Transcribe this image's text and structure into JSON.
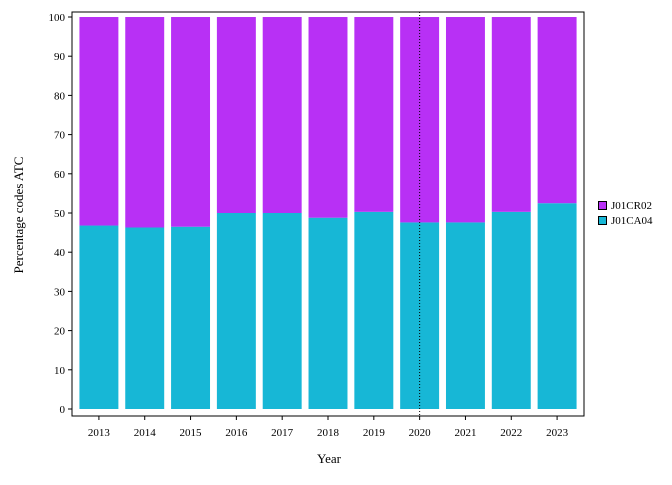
{
  "chart_data": {
    "type": "bar",
    "stacked": true,
    "categories": [
      "2013",
      "2014",
      "2015",
      "2016",
      "2017",
      "2018",
      "2019",
      "2020",
      "2021",
      "2022",
      "2023"
    ],
    "series": [
      {
        "name": "J01CA04",
        "color": "#17b7d6",
        "values": [
          46.8,
          46.3,
          46.5,
          50.0,
          50.0,
          48.8,
          50.3,
          47.6,
          47.6,
          50.3,
          52.5
        ]
      },
      {
        "name": "J01CR02",
        "color": "#b830f5",
        "values": [
          53.2,
          53.7,
          53.5,
          50.0,
          50.0,
          51.2,
          49.7,
          52.4,
          52.4,
          49.7,
          47.5
        ]
      }
    ],
    "xlabel": "Year",
    "ylabel": "Percentage codes ATC",
    "ylim": [
      0,
      100
    ],
    "yticks": [
      0,
      10,
      20,
      30,
      40,
      50,
      60,
      70,
      80,
      90,
      100
    ],
    "reference_line_at": "2020",
    "grid": false,
    "legend_position": "right"
  }
}
